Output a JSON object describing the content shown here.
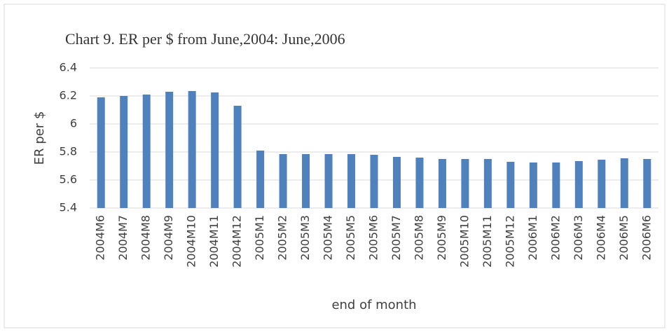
{
  "chart_data": {
    "type": "bar",
    "title": "Chart 9. ER per $ from June,2004: June,2006",
    "ylabel": "ER per $",
    "xlabel": "end of month",
    "categories": [
      "2004M6",
      "2004M7",
      "2004M8",
      "2004M9",
      "2004M10",
      "2004M11",
      "2004M12",
      "2005M1",
      "2005M2",
      "2005M3",
      "2005M4",
      "2005M5",
      "2005M6",
      "2005M7",
      "2005M8",
      "2005M9",
      "2005M10",
      "2005M11",
      "2005M12",
      "2006M1",
      "2006M2",
      "2006M3",
      "2006M4",
      "2006M5",
      "2006M6"
    ],
    "values": [
      6.19,
      6.2,
      6.21,
      6.23,
      6.235,
      6.225,
      6.13,
      5.81,
      5.785,
      5.785,
      5.785,
      5.785,
      5.78,
      5.765,
      5.76,
      5.75,
      5.75,
      5.75,
      5.73,
      5.725,
      5.725,
      5.735,
      5.745,
      5.755,
      5.75
    ],
    "color": "#4f81bd",
    "ylim": [
      5.4,
      6.4
    ],
    "yticks": [
      5.4,
      5.6,
      5.8,
      6,
      6.2,
      6.4
    ],
    "grid": true
  }
}
